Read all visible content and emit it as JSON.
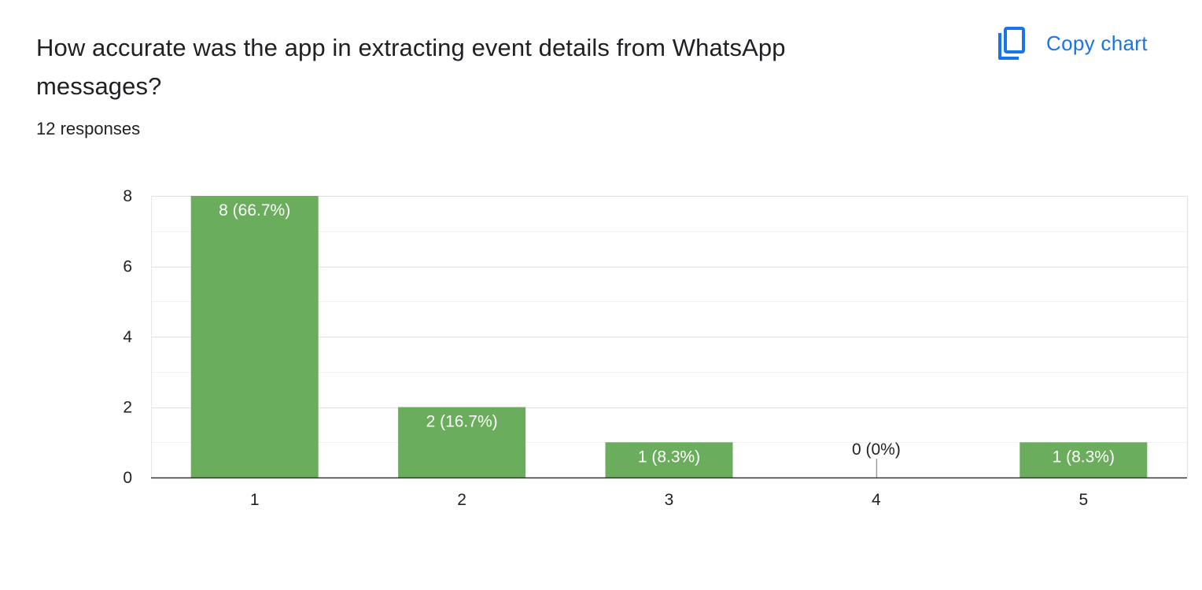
{
  "question": {
    "title": "How accurate was the app in extracting event details from WhatsApp messages?",
    "responses": "12 responses"
  },
  "actions": {
    "copy_chart_label": "Copy chart",
    "copy_icon": "copy-icon",
    "accent_color": "#1a73e8"
  },
  "chart_data": {
    "type": "bar",
    "categories": [
      "1",
      "2",
      "3",
      "4",
      "5"
    ],
    "values": [
      8,
      2,
      1,
      0,
      1
    ],
    "data_labels": [
      "8 (66.7%)",
      "2 (16.7%)",
      "1 (8.3%)",
      "0 (0%)",
      "1 (8.3%)"
    ],
    "yticks": [
      "0",
      "2",
      "4",
      "6",
      "8"
    ],
    "ylim": [
      0,
      8
    ],
    "title": "",
    "xlabel": "",
    "ylabel": "",
    "grid": true,
    "legend": "none",
    "bar_color": "#6aad5c"
  }
}
